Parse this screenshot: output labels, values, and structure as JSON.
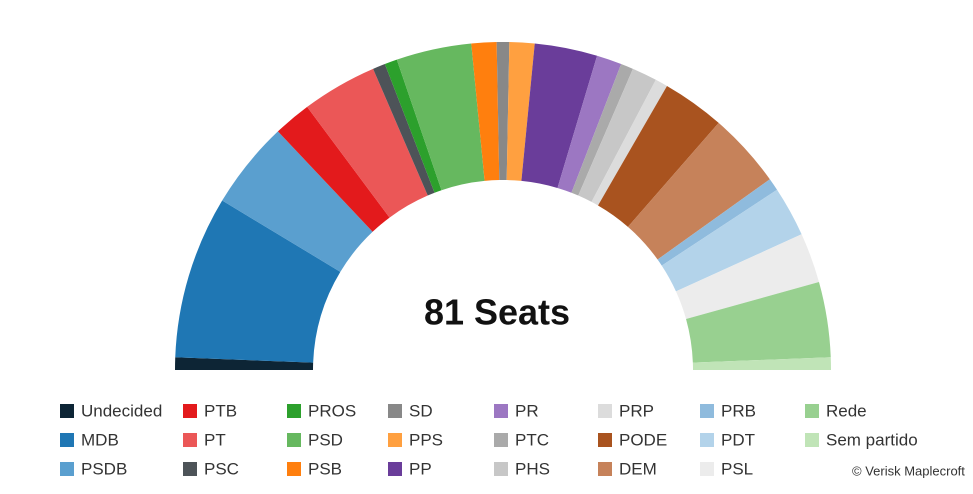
{
  "chart_data": {
    "type": "semi-donut",
    "center_label": "81 Seats",
    "credit": "© Verisk Maplecroft",
    "series": [
      {
        "name": "Undecided",
        "color": "#0d2535",
        "values": [
          1
        ]
      },
      {
        "name": "MDB",
        "color": "#1f77b4",
        "values": [
          13
        ]
      },
      {
        "name": "PSDB",
        "color": "#5a9fcf",
        "values": [
          7
        ]
      },
      {
        "name": "PTB",
        "color": "#e31a1c",
        "values": [
          3
        ]
      },
      {
        "name": "PT",
        "color": "#eb5757",
        "values": [
          6
        ]
      },
      {
        "name": "PSC",
        "color": "#4d5358",
        "values": [
          1
        ]
      },
      {
        "name": "PROS",
        "color": "#2ca02c",
        "values": [
          1
        ]
      },
      {
        "name": "PSD",
        "color": "#66b85f",
        "values": [
          6
        ]
      },
      {
        "name": "PSB",
        "color": "#ff7f0e",
        "values": [
          2
        ]
      },
      {
        "name": "SD",
        "color": "#888888",
        "values": [
          1
        ]
      },
      {
        "name": "PPS",
        "color": "#ffa040",
        "values": [
          2
        ]
      },
      {
        "name": "PP",
        "color": "#6a3d9a",
        "values": [
          5
        ]
      },
      {
        "name": "PR",
        "color": "#9c77c2",
        "values": [
          2
        ]
      },
      {
        "name": "PTC",
        "color": "#aaaaaa",
        "values": [
          1
        ]
      },
      {
        "name": "PHS",
        "color": "#c7c7c7",
        "values": [
          2
        ]
      },
      {
        "name": "PRP",
        "color": "#dcdcdc",
        "values": [
          1
        ]
      },
      {
        "name": "PODE",
        "color": "#a9531f",
        "values": [
          5
        ]
      },
      {
        "name": "DEM",
        "color": "#c6825a",
        "values": [
          6
        ]
      },
      {
        "name": "PRB",
        "color": "#8fbbdd",
        "values": [
          1
        ]
      },
      {
        "name": "PDT",
        "color": "#b3d3ea",
        "values": [
          4
        ]
      },
      {
        "name": "PSL",
        "color": "#ececec",
        "values": [
          4
        ]
      },
      {
        "name": "Rede",
        "color": "#98d090",
        "values": [
          6
        ]
      },
      {
        "name": "Sem partido",
        "color": "#c0e4b7",
        "values": [
          1
        ]
      }
    ]
  }
}
